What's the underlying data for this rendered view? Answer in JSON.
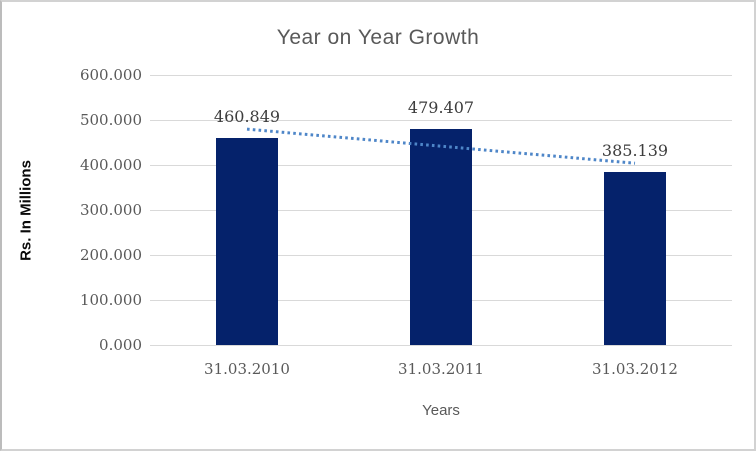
{
  "chart_data": {
    "type": "bar",
    "title": "Year on Year Growth",
    "xlabel": "Years",
    "ylabel": "Rs. In Millions",
    "categories": [
      "31.03.2010",
      "31.03.2011",
      "31.03.2012"
    ],
    "values": [
      460.849,
      479.407,
      385.139
    ],
    "value_labels": [
      "460.849",
      "479.407",
      "385.139"
    ],
    "ylim": [
      0,
      600
    ],
    "ytick_labels": [
      "0.000",
      "100.000",
      "200.000",
      "300.000",
      "400.000",
      "500.000",
      "600.000"
    ],
    "grid": true,
    "legend": "none",
    "bar_color": "#05226b",
    "trendline": {
      "kind": "linear",
      "style": "dotted",
      "color": "#4e86c8"
    },
    "colors": {
      "gridline": "#d9d9d9",
      "title_text": "#595959",
      "tick_text": "#595959",
      "data_label_text": "#3d3d3d",
      "y_axis_title_text": "#0a0a0a",
      "frame_border": "#d2d2d2"
    }
  }
}
